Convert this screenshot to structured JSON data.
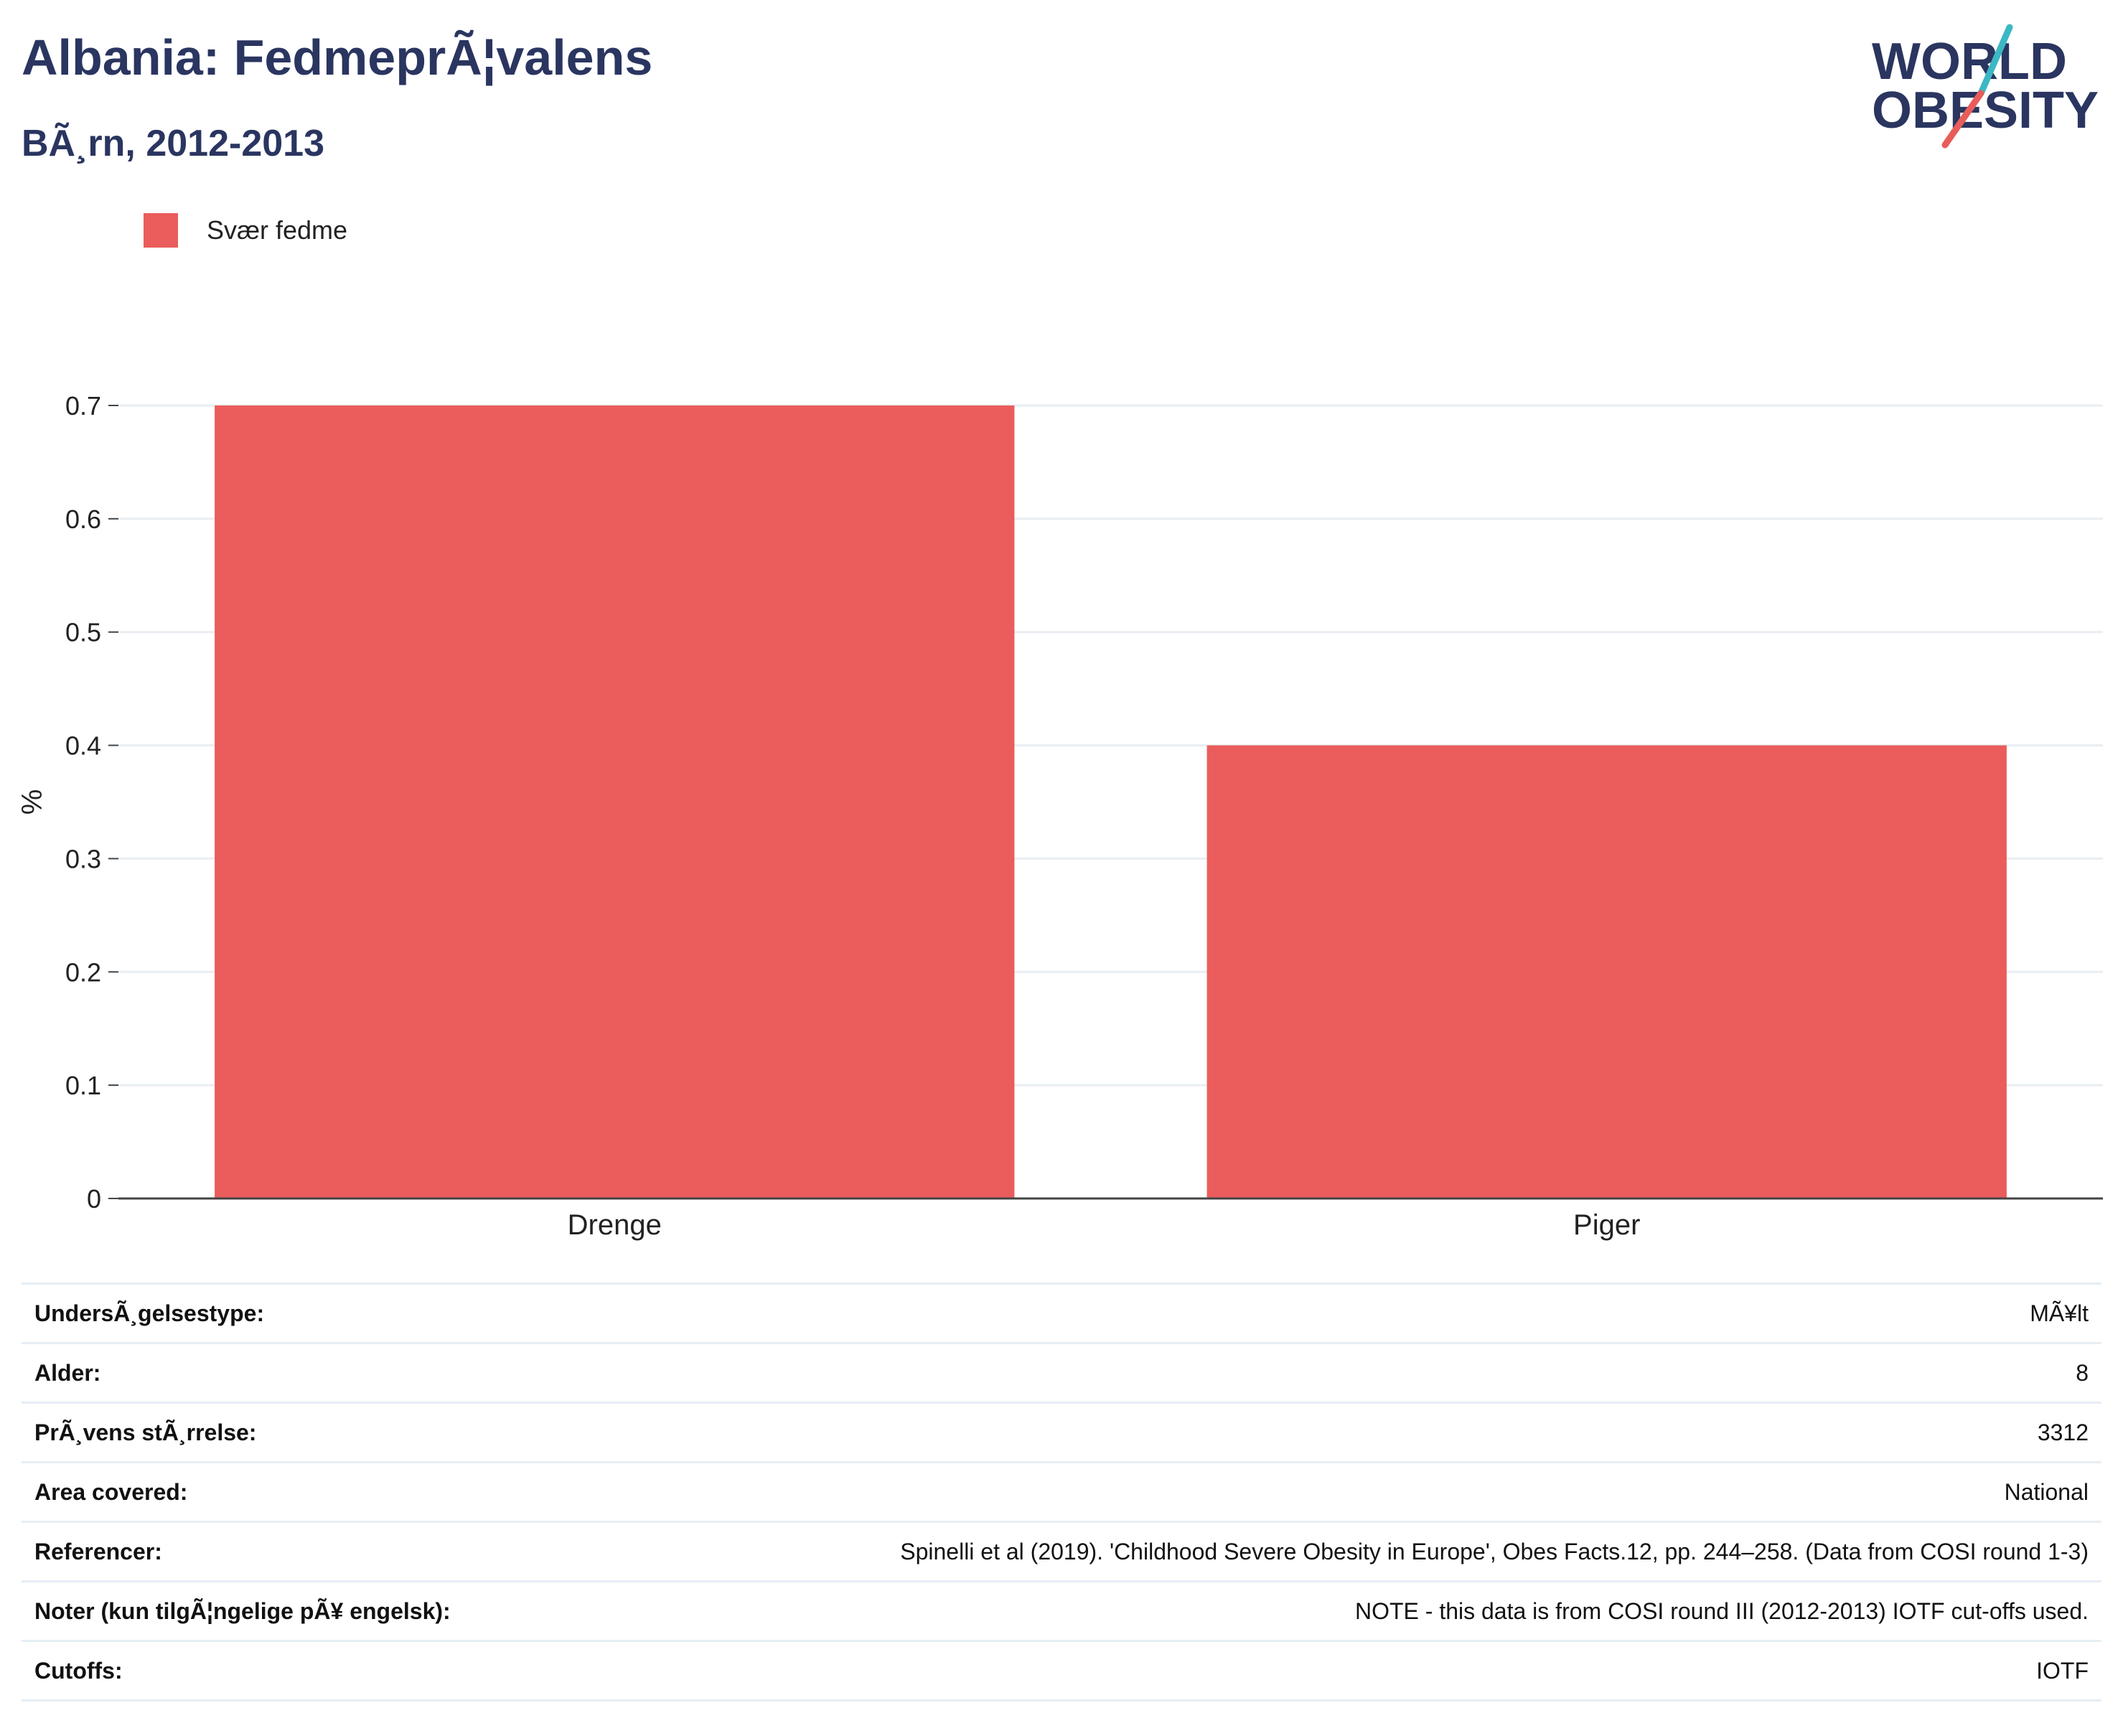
{
  "header": {
    "title": "Albania: FedmeprÃ¦valens",
    "subtitle": "BÃ¸rn, 2012-2013"
  },
  "logo": {
    "line1": "WORLD",
    "line2": "OBESITY",
    "colors": {
      "text": "#2a3560",
      "slash_top": "#3cb7c4",
      "slash_bottom": "#e85d5a"
    }
  },
  "chart_data": {
    "type": "bar",
    "categories": [
      "Drenge",
      "Piger"
    ],
    "series": [
      {
        "name": "Svær fedme",
        "values": [
          0.7,
          0.4
        ],
        "color": "#eb5c5c"
      }
    ],
    "xlabel": "",
    "ylabel": "%",
    "ylim": [
      0,
      0.7
    ],
    "yticks": [
      0,
      0.1,
      0.2,
      0.3,
      0.4,
      0.5,
      0.6,
      0.7
    ],
    "grid": true,
    "legend_position": "top-left"
  },
  "info": {
    "rows": [
      {
        "label": "UndersÃ¸gelsestype:",
        "value": "MÃ¥lt"
      },
      {
        "label": "Alder:",
        "value": "8"
      },
      {
        "label": "PrÃ¸vens stÃ¸rrelse:",
        "value": "3312"
      },
      {
        "label": "Area covered:",
        "value": "National"
      },
      {
        "label": "Referencer:",
        "value": "Spinelli et al (2019). 'Childhood Severe Obesity in Europe', Obes Facts.12, pp. 244–258. (Data from COSI round 1-3)"
      },
      {
        "label": "Noter (kun tilgÃ¦ngelige pÃ¥ engelsk):",
        "value": "NOTE - this data is from COSI round III (2012-2013) IOTF cut-offs used."
      },
      {
        "label": "Cutoffs:",
        "value": "IOTF"
      }
    ]
  }
}
